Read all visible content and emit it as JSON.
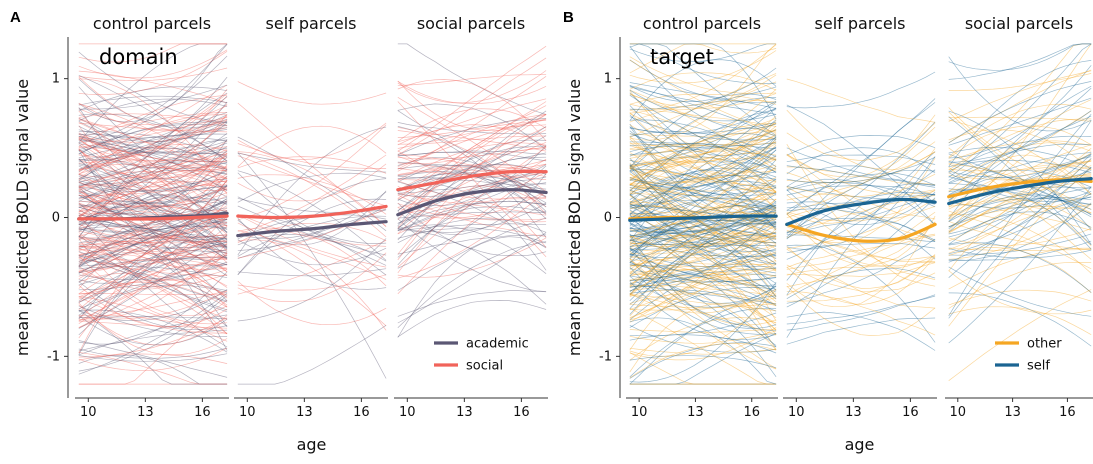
{
  "chart_data": [
    {
      "panel_letter": "A",
      "type": "line",
      "tag": "domain",
      "facets": [
        "control parcels",
        "self parcels",
        "social parcels"
      ],
      "xlabel": "age",
      "ylabel": "mean predicted BOLD signal value",
      "x_ticks": [
        10,
        13,
        16
      ],
      "y_ticks": [
        -1,
        0,
        1
      ],
      "xlim": [
        9.3,
        17.4
      ],
      "ylim": [
        -1.3,
        1.3
      ],
      "legend_position": "bottom-right",
      "series": [
        {
          "name": "academic",
          "color": "#5b5774"
        },
        {
          "name": "social",
          "color": "#f1635a"
        }
      ],
      "fit_lines": {
        "control parcels": {
          "x": [
            9.5,
            11.5,
            13.5,
            15.5,
            17.3
          ],
          "academic": [
            -0.01,
            -0.01,
            0.0,
            0.01,
            0.03
          ],
          "social": [
            -0.01,
            -0.01,
            -0.01,
            0.0,
            0.01
          ]
        },
        "self parcels": {
          "x": [
            9.5,
            11.5,
            13.5,
            15.5,
            17.3
          ],
          "academic": [
            -0.13,
            -0.1,
            -0.08,
            -0.05,
            -0.03
          ],
          "social": [
            0.01,
            0.0,
            0.01,
            0.04,
            0.08
          ]
        },
        "social parcels": {
          "x": [
            9.5,
            11.5,
            13.5,
            15.5,
            17.3
          ],
          "academic": [
            0.02,
            0.12,
            0.18,
            0.2,
            0.18
          ],
          "social": [
            0.2,
            0.25,
            0.3,
            0.33,
            0.33
          ]
        }
      }
    },
    {
      "panel_letter": "B",
      "type": "line",
      "tag": "target",
      "facets": [
        "control parcels",
        "self parcels",
        "social parcels"
      ],
      "xlabel": "age",
      "ylabel": "mean predicted BOLD signal value",
      "x_ticks": [
        10,
        13,
        16
      ],
      "y_ticks": [
        -1,
        0,
        1
      ],
      "xlim": [
        9.3,
        17.4
      ],
      "ylim": [
        -1.3,
        1.3
      ],
      "legend_position": "bottom-right",
      "series": [
        {
          "name": "other",
          "color": "#f5a623"
        },
        {
          "name": "self",
          "color": "#1a6492"
        }
      ],
      "fit_lines": {
        "control parcels": {
          "x": [
            9.5,
            11.5,
            13.5,
            15.5,
            17.3
          ],
          "other": [
            -0.01,
            0.0,
            0.0,
            0.01,
            0.01
          ],
          "self": [
            -0.02,
            -0.01,
            0.0,
            0.01,
            0.01
          ]
        },
        "self parcels": {
          "x": [
            9.5,
            11.5,
            13.5,
            15.5,
            17.3
          ],
          "other": [
            -0.05,
            -0.13,
            -0.17,
            -0.15,
            -0.05
          ],
          "self": [
            -0.05,
            0.05,
            0.1,
            0.13,
            0.11
          ]
        },
        "social parcels": {
          "x": [
            9.5,
            11.5,
            13.5,
            15.5,
            17.3
          ],
          "other": [
            0.15,
            0.21,
            0.25,
            0.27,
            0.26
          ],
          "self": [
            0.1,
            0.17,
            0.22,
            0.26,
            0.28
          ]
        }
      }
    }
  ]
}
